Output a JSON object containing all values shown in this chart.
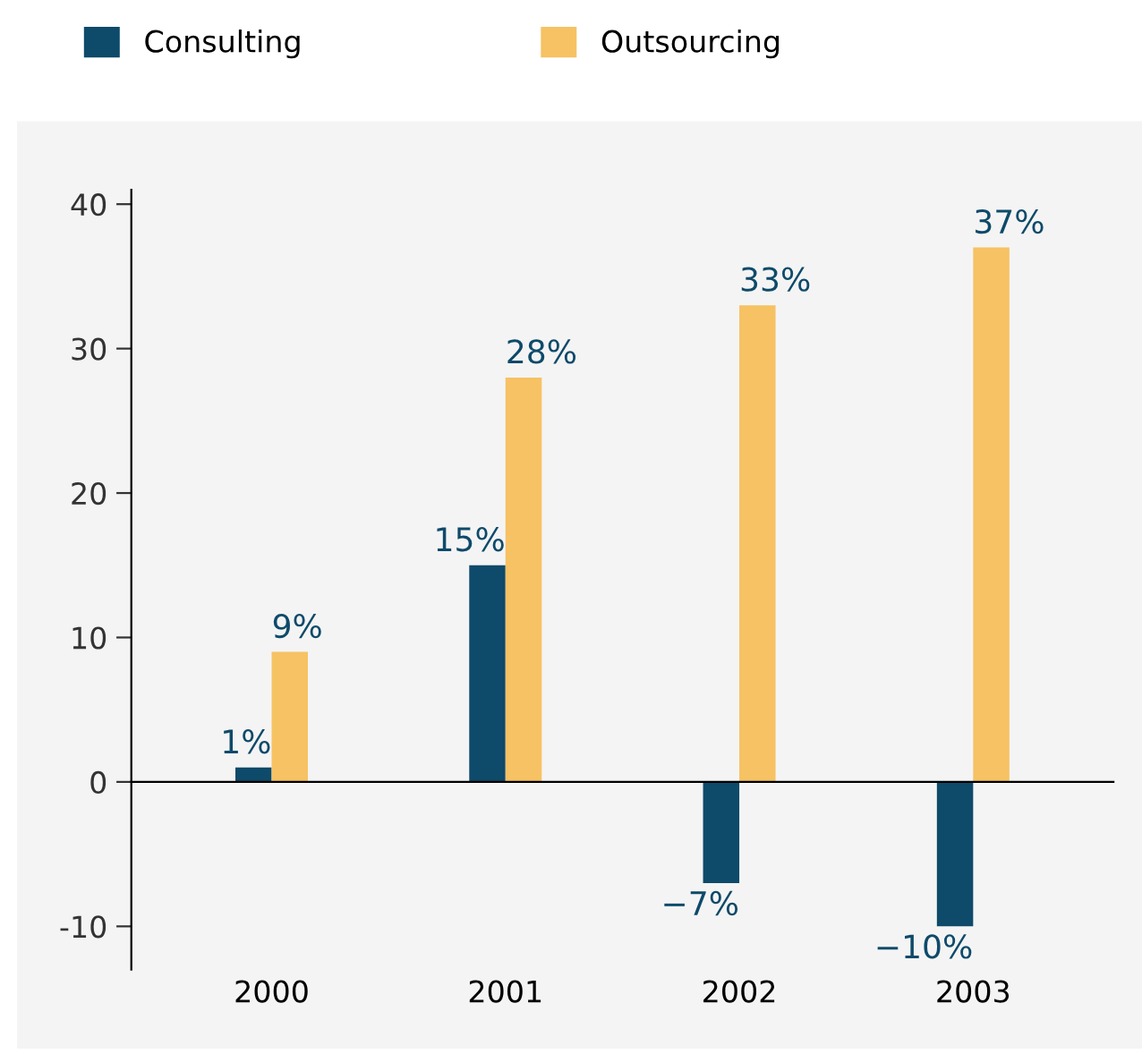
{
  "chart_data": {
    "type": "bar",
    "categories": [
      "2000",
      "2001",
      "2002",
      "2003"
    ],
    "series": [
      {
        "name": "Consulting",
        "color": "#0e4a6a",
        "values": [
          1,
          15,
          -7,
          -10
        ],
        "value_labels": [
          "1%",
          "15%",
          "−7%",
          "−10%"
        ]
      },
      {
        "name": "Outsourcing",
        "color": "#f6c263",
        "values": [
          9,
          28,
          33,
          37
        ],
        "value_labels": [
          "9%",
          "28%",
          "33%",
          "37%"
        ]
      }
    ],
    "ylim": [
      -13,
      41
    ],
    "yticks": [
      {
        "value": -10,
        "label": "-10"
      },
      0,
      10,
      20,
      30,
      40
    ],
    "legend": "top left"
  }
}
